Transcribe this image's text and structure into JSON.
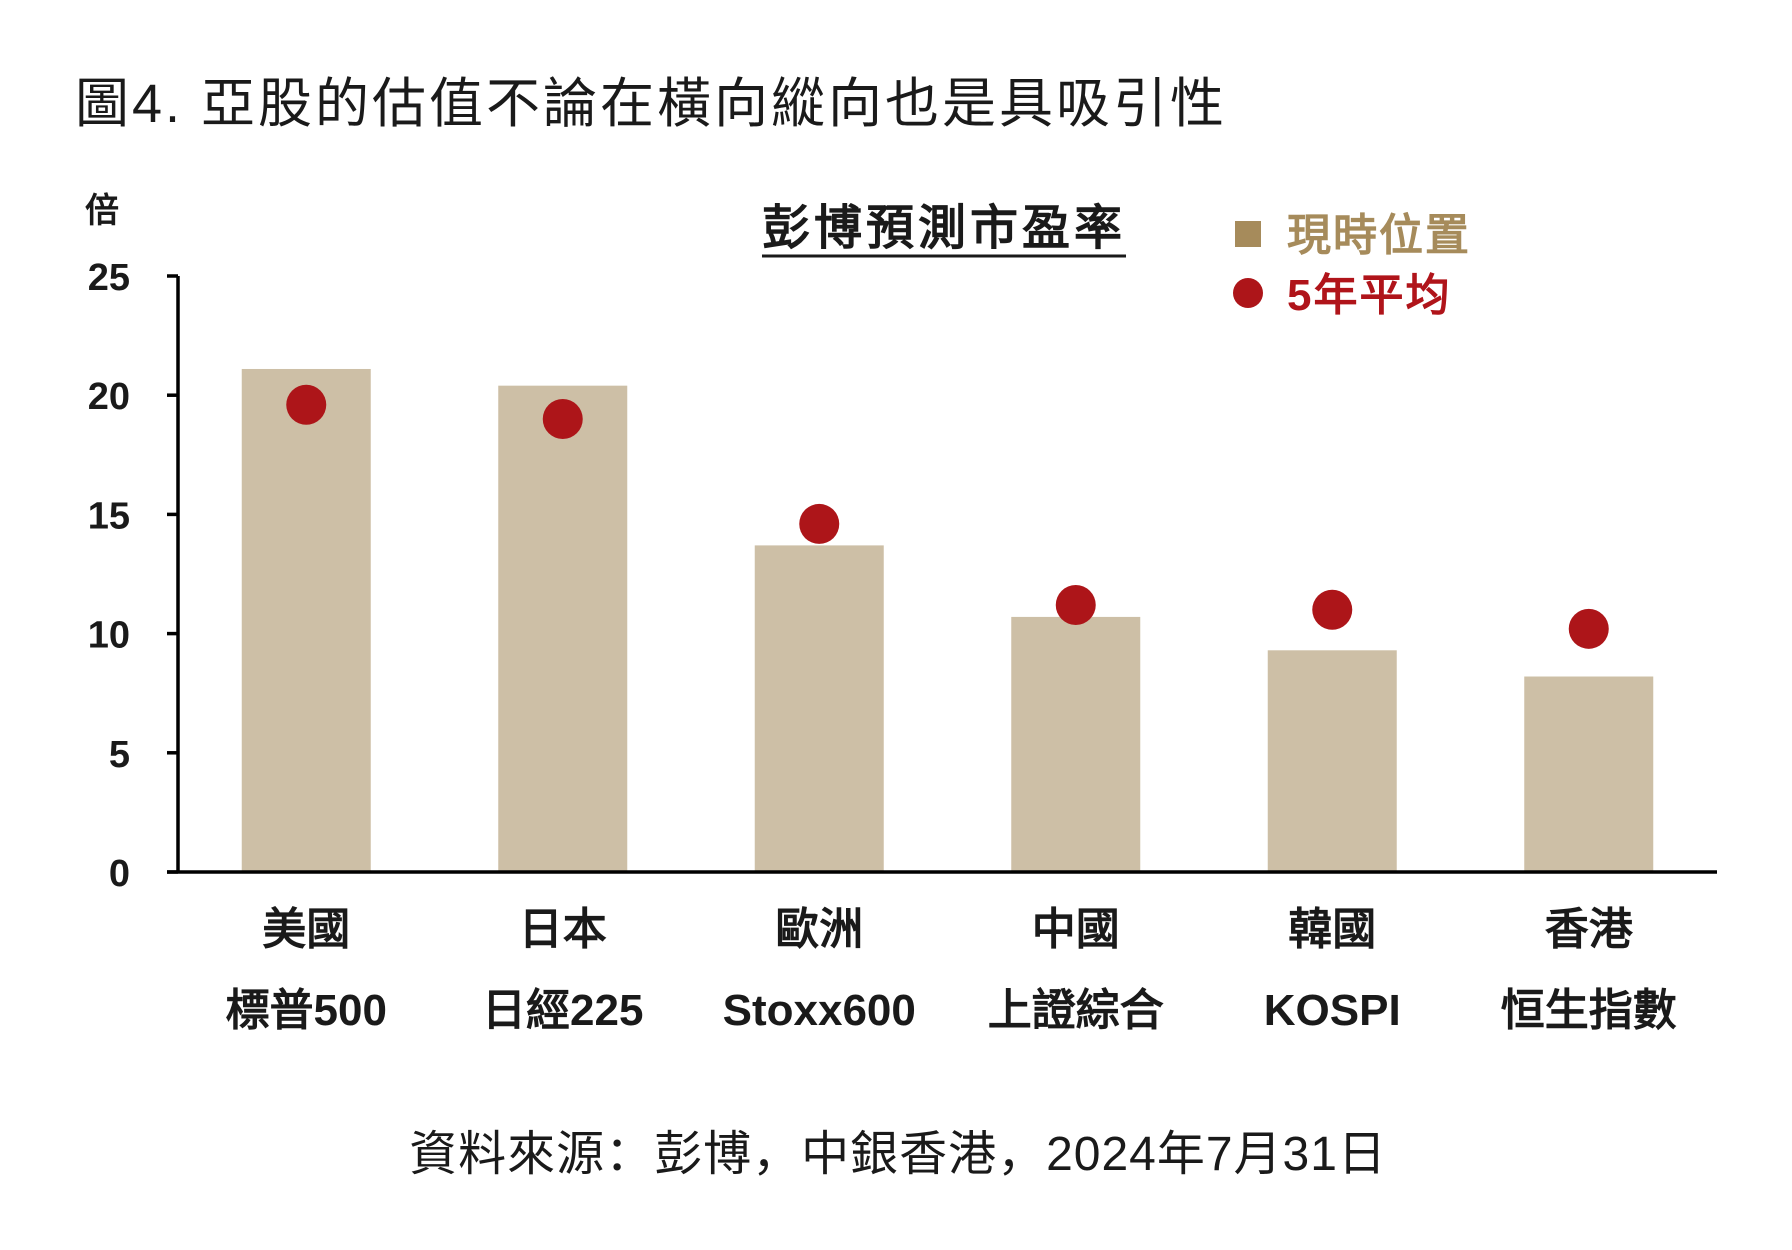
{
  "title": "圖4. 亞股的估值不論在橫向縱向也是具吸引性",
  "source": "資料來源：彭博，中銀香港，2024年7月31日",
  "chart_data": {
    "type": "bar",
    "title": "彭博預測市盈率",
    "xlabel": "",
    "ylabel": "倍",
    "ylim": [
      0,
      25
    ],
    "yticks": [
      0,
      5,
      10,
      15,
      20,
      25
    ],
    "grid": false,
    "legend_position": "top-right",
    "categories": [
      {
        "market": "美國",
        "index": "標普500"
      },
      {
        "market": "日本",
        "index": "日經225"
      },
      {
        "market": "歐洲",
        "index": "Stoxx600"
      },
      {
        "market": "中國",
        "index": "上證綜合"
      },
      {
        "market": "韓國",
        "index": "KOSPI"
      },
      {
        "market": "香港",
        "index": "恒生指數"
      }
    ],
    "series": [
      {
        "name": "現時位置",
        "type": "bar",
        "color": "#cdbfa6",
        "legend_color": "#a68b5b",
        "values": [
          21.1,
          20.4,
          13.7,
          10.7,
          9.3,
          8.2
        ]
      },
      {
        "name": "5年平均",
        "type": "scatter",
        "color": "#ad1519",
        "legend_color": "#b0141a",
        "values": [
          19.6,
          19.0,
          14.6,
          11.2,
          11.0,
          10.2
        ]
      }
    ]
  }
}
